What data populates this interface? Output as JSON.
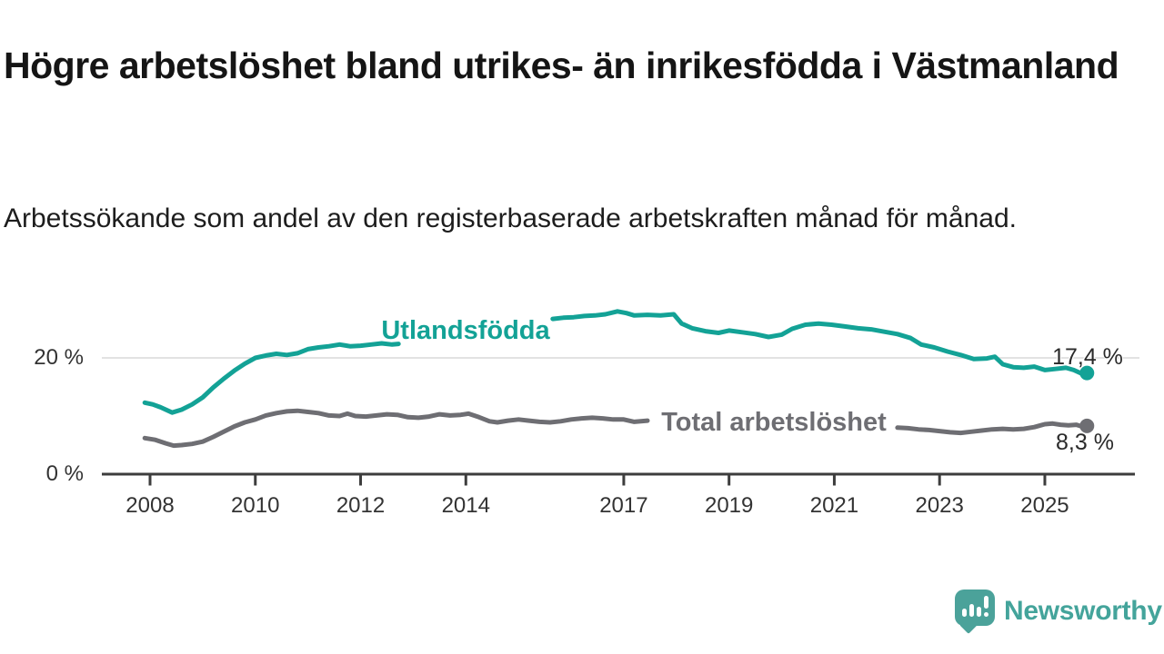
{
  "chart_data": {
    "type": "line",
    "title": "Högre arbetslöshet bland utrikes- än inrikesfödda i Västmanland",
    "subtitle": "Arbetssökande som andel av den registerbaserade arbetskraften månad för månad.",
    "unit": "%",
    "grid": "horizontal-only",
    "x_axis": {
      "ticks": [
        2008,
        2010,
        2012,
        2014,
        2017,
        2019,
        2021,
        2023,
        2025
      ],
      "tick_labels": [
        "2008",
        "2010",
        "2012",
        "2014",
        "2017",
        "2019",
        "2021",
        "2023",
        "2025"
      ],
      "range": [
        2007.1,
        2026.7
      ]
    },
    "y_axis": {
      "ticks": [
        0,
        20
      ],
      "tick_labels": [
        "0 %",
        "20 %"
      ],
      "range": [
        0,
        30
      ],
      "gridlines": [
        20
      ]
    },
    "series": [
      {
        "name": "Utlandsfödda",
        "color": "#13a296",
        "end_label": "17,4 %",
        "end_value": 17.4,
        "label_hidden_span": [
          2012.75,
          2015.62
        ],
        "points": [
          [
            2007.9,
            12.3
          ],
          [
            2008.05,
            12.0
          ],
          [
            2008.2,
            11.5
          ],
          [
            2008.42,
            10.6
          ],
          [
            2008.6,
            11.1
          ],
          [
            2008.8,
            12.0
          ],
          [
            2009.0,
            13.2
          ],
          [
            2009.2,
            14.9
          ],
          [
            2009.4,
            16.4
          ],
          [
            2009.6,
            17.8
          ],
          [
            2009.8,
            19.0
          ],
          [
            2010.0,
            20.0
          ],
          [
            2010.2,
            20.4
          ],
          [
            2010.4,
            20.7
          ],
          [
            2010.6,
            20.5
          ],
          [
            2010.8,
            20.8
          ],
          [
            2011.0,
            21.5
          ],
          [
            2011.2,
            21.8
          ],
          [
            2011.4,
            22.0
          ],
          [
            2011.6,
            22.3
          ],
          [
            2011.8,
            22.0
          ],
          [
            2012.0,
            22.1
          ],
          [
            2012.2,
            22.3
          ],
          [
            2012.4,
            22.5
          ],
          [
            2012.6,
            22.3
          ],
          [
            2012.72,
            22.4
          ],
          [
            2013.0,
            22.9
          ],
          [
            2013.5,
            23.5
          ],
          [
            2014.0,
            24.1
          ],
          [
            2014.5,
            24.9
          ],
          [
            2015.0,
            25.7
          ],
          [
            2015.35,
            26.2
          ],
          [
            2015.65,
            26.7
          ],
          [
            2015.85,
            26.9
          ],
          [
            2016.05,
            27.0
          ],
          [
            2016.25,
            27.2
          ],
          [
            2016.45,
            27.3
          ],
          [
            2016.65,
            27.5
          ],
          [
            2016.88,
            28.0
          ],
          [
            2017.05,
            27.7
          ],
          [
            2017.2,
            27.3
          ],
          [
            2017.45,
            27.4
          ],
          [
            2017.7,
            27.3
          ],
          [
            2017.95,
            27.5
          ],
          [
            2018.1,
            25.9
          ],
          [
            2018.3,
            25.1
          ],
          [
            2018.55,
            24.6
          ],
          [
            2018.8,
            24.3
          ],
          [
            2019.0,
            24.7
          ],
          [
            2019.25,
            24.4
          ],
          [
            2019.5,
            24.1
          ],
          [
            2019.75,
            23.6
          ],
          [
            2020.0,
            24.0
          ],
          [
            2020.2,
            25.0
          ],
          [
            2020.45,
            25.7
          ],
          [
            2020.7,
            25.9
          ],
          [
            2020.95,
            25.7
          ],
          [
            2021.2,
            25.4
          ],
          [
            2021.45,
            25.1
          ],
          [
            2021.7,
            24.9
          ],
          [
            2021.95,
            24.5
          ],
          [
            2022.2,
            24.1
          ],
          [
            2022.45,
            23.4
          ],
          [
            2022.65,
            22.3
          ],
          [
            2022.9,
            21.8
          ],
          [
            2023.15,
            21.1
          ],
          [
            2023.4,
            20.5
          ],
          [
            2023.65,
            19.8
          ],
          [
            2023.9,
            19.9
          ],
          [
            2024.05,
            20.2
          ],
          [
            2024.2,
            18.9
          ],
          [
            2024.4,
            18.4
          ],
          [
            2024.6,
            18.3
          ],
          [
            2024.8,
            18.5
          ],
          [
            2025.0,
            17.9
          ],
          [
            2025.2,
            18.1
          ],
          [
            2025.4,
            18.3
          ],
          [
            2025.55,
            17.9
          ],
          [
            2025.7,
            17.3
          ],
          [
            2025.8,
            17.4
          ]
        ]
      },
      {
        "name": "Total arbetslöshet",
        "color": "#6e6e73",
        "end_label": "8,3 %",
        "end_value": 8.3,
        "label_hidden_span": [
          2017.47,
          2022.18
        ],
        "points": [
          [
            2007.9,
            6.2
          ],
          [
            2008.1,
            5.9
          ],
          [
            2008.3,
            5.3
          ],
          [
            2008.45,
            4.9
          ],
          [
            2008.6,
            5.0
          ],
          [
            2008.8,
            5.2
          ],
          [
            2009.0,
            5.6
          ],
          [
            2009.2,
            6.4
          ],
          [
            2009.4,
            7.3
          ],
          [
            2009.6,
            8.2
          ],
          [
            2009.8,
            8.9
          ],
          [
            2010.0,
            9.4
          ],
          [
            2010.2,
            10.1
          ],
          [
            2010.4,
            10.5
          ],
          [
            2010.6,
            10.8
          ],
          [
            2010.8,
            10.9
          ],
          [
            2011.0,
            10.7
          ],
          [
            2011.2,
            10.5
          ],
          [
            2011.4,
            10.1
          ],
          [
            2011.6,
            10.0
          ],
          [
            2011.75,
            10.4
          ],
          [
            2011.9,
            10.0
          ],
          [
            2012.1,
            9.9
          ],
          [
            2012.3,
            10.1
          ],
          [
            2012.5,
            10.3
          ],
          [
            2012.7,
            10.2
          ],
          [
            2012.9,
            9.8
          ],
          [
            2013.1,
            9.7
          ],
          [
            2013.3,
            9.9
          ],
          [
            2013.5,
            10.3
          ],
          [
            2013.7,
            10.1
          ],
          [
            2013.9,
            10.2
          ],
          [
            2014.05,
            10.4
          ],
          [
            2014.25,
            9.8
          ],
          [
            2014.45,
            9.1
          ],
          [
            2014.6,
            8.9
          ],
          [
            2014.8,
            9.2
          ],
          [
            2015.0,
            9.4
          ],
          [
            2015.2,
            9.2
          ],
          [
            2015.4,
            9.0
          ],
          [
            2015.6,
            8.9
          ],
          [
            2015.8,
            9.1
          ],
          [
            2016.0,
            9.4
          ],
          [
            2016.2,
            9.6
          ],
          [
            2016.4,
            9.7
          ],
          [
            2016.6,
            9.6
          ],
          [
            2016.8,
            9.4
          ],
          [
            2017.0,
            9.4
          ],
          [
            2017.2,
            9.0
          ],
          [
            2017.45,
            9.2
          ],
          [
            2018.0,
            8.9
          ],
          [
            2018.5,
            9.0
          ],
          [
            2019.0,
            8.9
          ],
          [
            2019.5,
            8.8
          ],
          [
            2020.0,
            9.3
          ],
          [
            2020.5,
            10.4
          ],
          [
            2021.0,
            10.1
          ],
          [
            2021.5,
            9.4
          ],
          [
            2022.0,
            8.4
          ],
          [
            2022.2,
            8.0
          ],
          [
            2022.4,
            7.9
          ],
          [
            2022.6,
            7.7
          ],
          [
            2022.8,
            7.6
          ],
          [
            2023.0,
            7.4
          ],
          [
            2023.2,
            7.2
          ],
          [
            2023.4,
            7.1
          ],
          [
            2023.6,
            7.3
          ],
          [
            2023.8,
            7.5
          ],
          [
            2024.0,
            7.7
          ],
          [
            2024.2,
            7.8
          ],
          [
            2024.4,
            7.7
          ],
          [
            2024.6,
            7.8
          ],
          [
            2024.8,
            8.1
          ],
          [
            2025.0,
            8.6
          ],
          [
            2025.15,
            8.7
          ],
          [
            2025.3,
            8.5
          ],
          [
            2025.45,
            8.4
          ],
          [
            2025.6,
            8.5
          ],
          [
            2025.7,
            8.2
          ],
          [
            2025.8,
            8.3
          ]
        ]
      }
    ]
  },
  "colors": {
    "accent_teal": "#13a296",
    "line_gray": "#6e6e73",
    "axis": "#3d3d3d",
    "gridline": "#d9d9d9",
    "text": "#1d1d1d",
    "brand_teal": "#44a49b",
    "logo_bubble": "#4ba29a"
  },
  "footer": {
    "brand": "Newsworthy"
  }
}
